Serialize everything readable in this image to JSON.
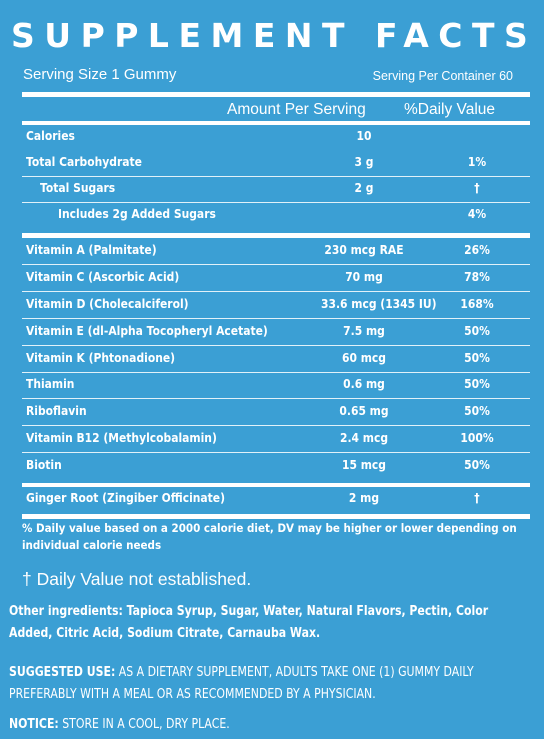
{
  "panel": {
    "title": "SUPPLEMENT FACTS",
    "serving_size": "Serving Size 1 Gummy",
    "servings_per_container": "Serving Per Container 60",
    "header_amount": "Amount Per Serving",
    "header_dv": "%Daily Value",
    "rows": [
      {
        "name": "Calories",
        "amount": "10",
        "dv": ""
      },
      {
        "name": "Total Carbohydrate",
        "amount": "3 g",
        "dv": "1%"
      },
      {
        "name": "Total Sugars",
        "amount": "2 g",
        "dv": "†"
      },
      {
        "name": "Includes 2g Added Sugars",
        "amount": "",
        "dv": "4%"
      },
      {
        "name": "Vitamin A (Palmitate)",
        "amount": "230 mcg RAE",
        "dv": "26%"
      },
      {
        "name": "Vitamin C (Ascorbic Acid)",
        "amount": "70 mg",
        "dv": "78%"
      },
      {
        "name": "Vitamin D (Cholecalciferol)",
        "amount": "33.6 mcg (1345 IU)",
        "dv": "168%"
      },
      {
        "name": "Vitamin E (dl-Alpha Tocopheryl Acetate)",
        "amount": "7.5 mg",
        "dv": "50%"
      },
      {
        "name": "Vitamin K (Phtonadione)",
        "amount": "60 mcg",
        "dv": "50%"
      },
      {
        "name": "Thiamin",
        "amount": "0.6 mg",
        "dv": "50%"
      },
      {
        "name": "Riboflavin",
        "amount": "0.65 mg",
        "dv": "50%"
      },
      {
        "name": "Vitamin B12  (Methylcobalamin)",
        "amount": "2.4 mcg",
        "dv": "100%"
      },
      {
        "name": "Biotin",
        "amount": "15 mcg",
        "dv": "50%"
      },
      {
        "name": "Ginger Root (Zingiber Officinate)",
        "amount": "2 mg",
        "dv": "†"
      }
    ],
    "footnote": "% Daily value based on a 2000 calorie diet, DV may be higher or lower depending on individual calorie needs",
    "dagger_note": "† Daily Value not established."
  },
  "other_ingredients": "Other ingredients: Tapioca Syrup, Sugar, Water, Natural Flavors, Pectin, Color Added, Citric Acid, Sodium Citrate, Carnauba Wax.",
  "suggested_use_label": "SUGGESTED USE:",
  "suggested_use_text": " AS A DIETARY SUPPLEMENT, ADULTS TAKE ONE (1) GUMMY DAILY PREFERABLY WITH A MEAL OR AS RECOMMENDED BY A PHYSICIAN.",
  "notice_label": "NOTICE:",
  "notice_text": " STORE IN A COOL, DRY PLACE.",
  "colors": {
    "background": "#3b9fd4",
    "text": "#ffffff"
  }
}
